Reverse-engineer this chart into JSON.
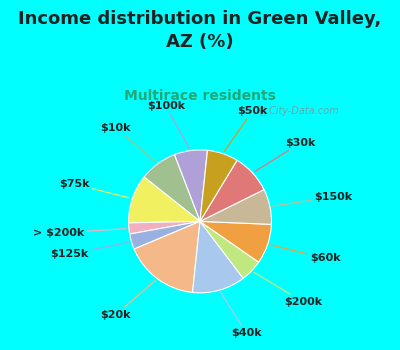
{
  "title": "Income distribution in Green Valley,\nAZ (%)",
  "subtitle": "Multirace residents",
  "bg_cyan": "#00FFFF",
  "bg_chart_gradient_top": "#e8f5f0",
  "bg_chart_gradient_bottom": "#d0eee8",
  "labels": [
    "$100k",
    "$10k",
    "$75k",
    "> $200k",
    "$125k",
    "$20k",
    "$40k",
    "$200k",
    "$60k",
    "$150k",
    "$30k",
    "$50k"
  ],
  "values": [
    7.5,
    8.5,
    11,
    2.5,
    3.5,
    17,
    12,
    5,
    9,
    8,
    9,
    7
  ],
  "colors": [
    "#b0a0d8",
    "#a0c090",
    "#f0f060",
    "#f0b0c0",
    "#9ab0e0",
    "#f5b888",
    "#a8c8ee",
    "#c0e880",
    "#f0a040",
    "#c8b898",
    "#e07878",
    "#c8a020"
  ],
  "watermark": "City-Data.com",
  "label_fontsize": 8,
  "title_fontsize": 13,
  "subtitle_fontsize": 10,
  "startangle": 84
}
